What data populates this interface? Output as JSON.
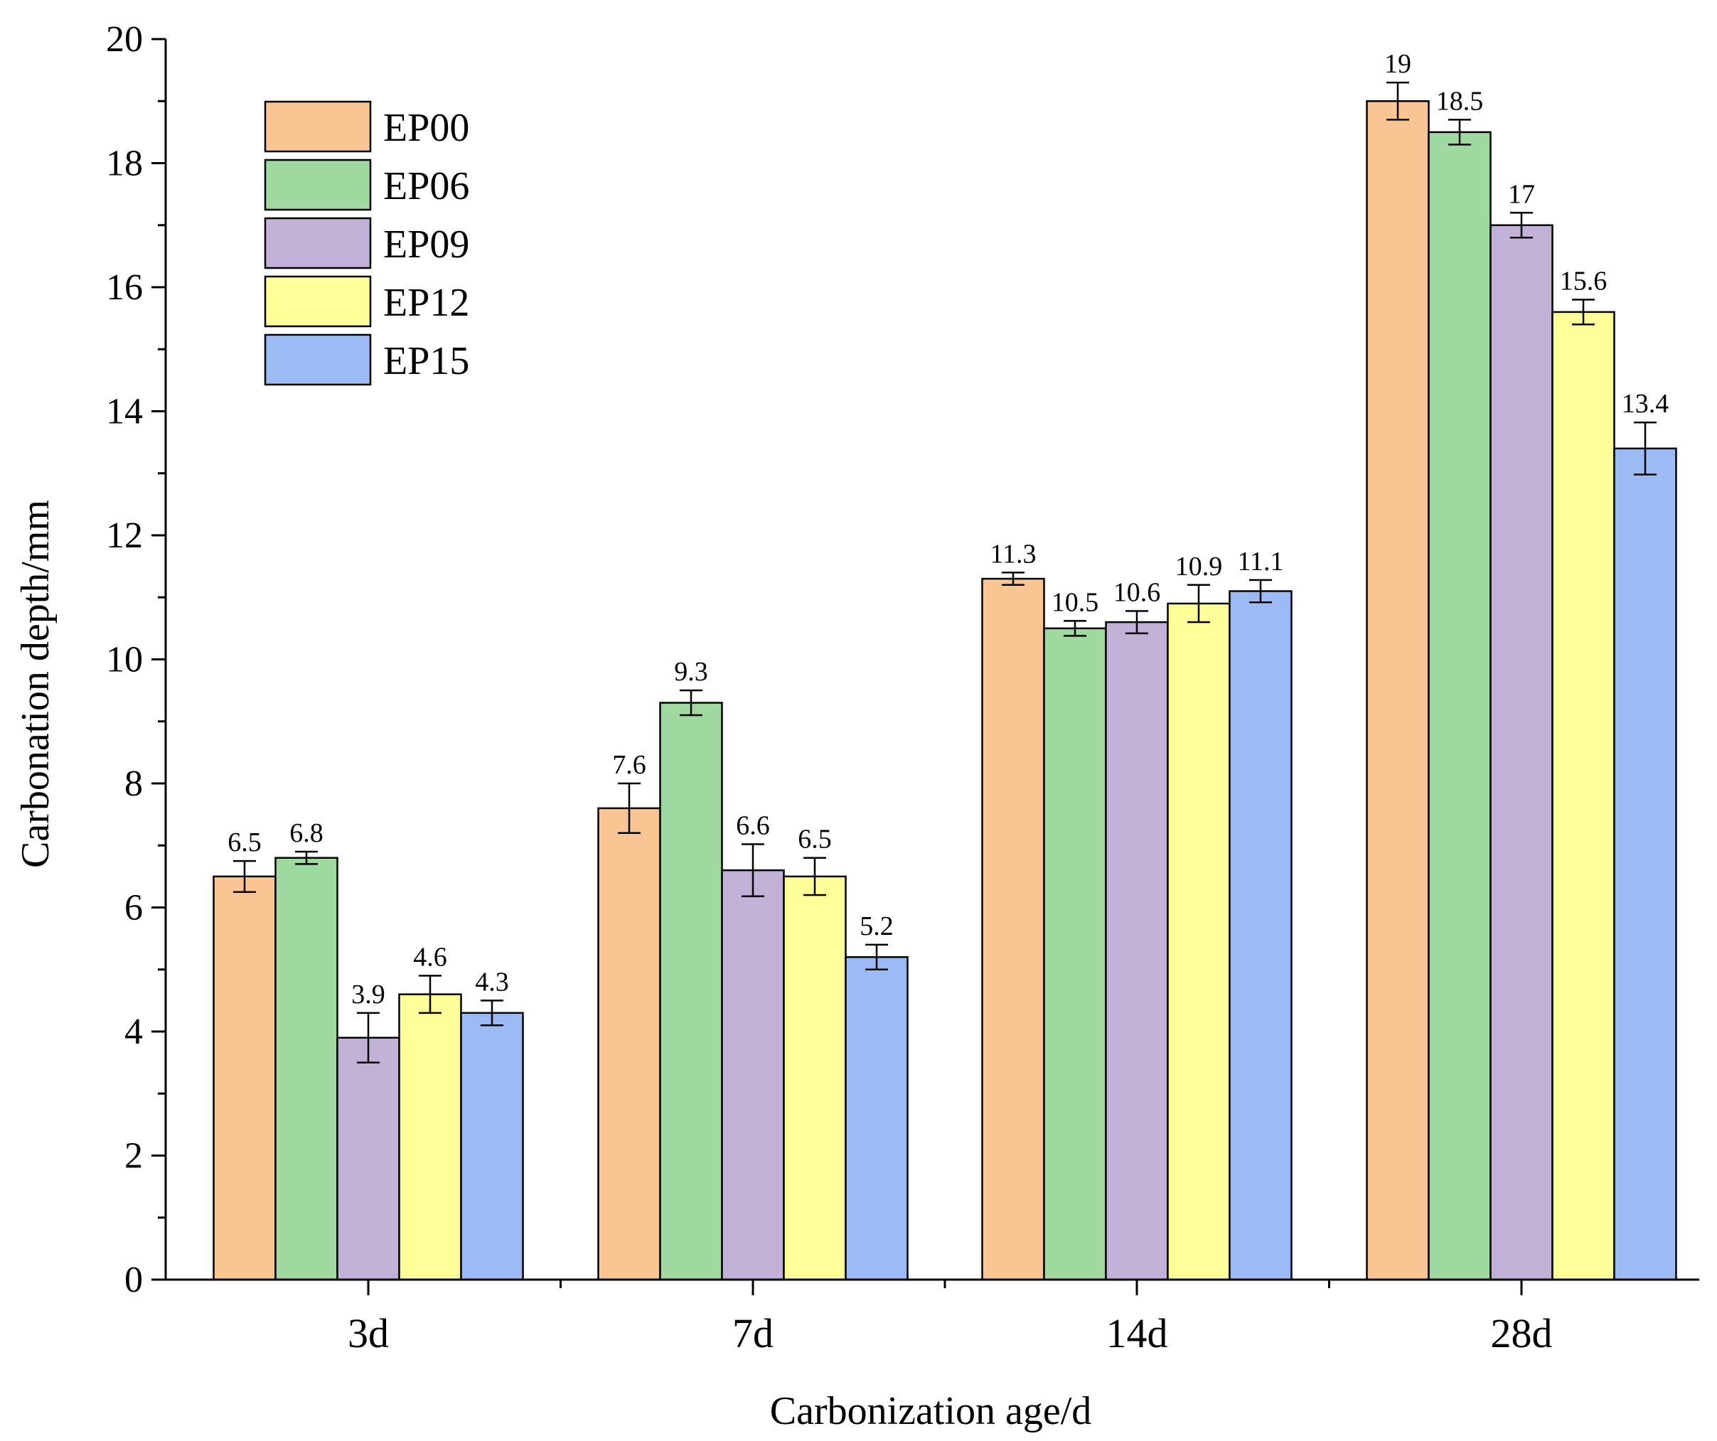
{
  "chart_data": {
    "type": "bar",
    "title": "",
    "xlabel": "Carbonization age/d",
    "ylabel": "Carbonation depth/mm",
    "ylim": [
      0,
      20
    ],
    "yticks": [
      0,
      2,
      4,
      6,
      8,
      10,
      12,
      14,
      16,
      18,
      20
    ],
    "categories": [
      "3d",
      "7d",
      "14d",
      "28d"
    ],
    "legend_position": "top-left",
    "series": [
      {
        "name": "EP00",
        "color": "#f9c593",
        "values": [
          6.5,
          7.6,
          11.3,
          19
        ],
        "errors": [
          0.25,
          0.4,
          0.1,
          0.3
        ],
        "labels": [
          "6.5",
          "7.6",
          "11.3",
          "19"
        ]
      },
      {
        "name": "EP06",
        "color": "#a0d9a0",
        "values": [
          6.8,
          9.3,
          10.5,
          18.5
        ],
        "errors": [
          0.1,
          0.2,
          0.12,
          0.2
        ],
        "labels": [
          "6.8",
          "9.3",
          "10.5",
          "18.5"
        ]
      },
      {
        "name": "EP09",
        "color": "#c2b1d6",
        "values": [
          3.9,
          6.6,
          10.6,
          17
        ],
        "errors": [
          0.4,
          0.42,
          0.18,
          0.2
        ],
        "labels": [
          "3.9",
          "6.6",
          "10.6",
          "17"
        ]
      },
      {
        "name": "EP12",
        "color": "#ffff99",
        "values": [
          4.6,
          6.5,
          10.9,
          15.6
        ],
        "errors": [
          0.3,
          0.3,
          0.3,
          0.2
        ],
        "labels": [
          "4.6",
          "6.5",
          "10.9",
          "15.6"
        ]
      },
      {
        "name": "EP15",
        "color": "#9cbaf3",
        "values": [
          4.3,
          5.2,
          11.1,
          13.4
        ],
        "errors": [
          0.2,
          0.2,
          0.18,
          0.42
        ],
        "labels": [
          "4.3",
          "5.2",
          "11.1",
          "13.4"
        ]
      }
    ]
  }
}
